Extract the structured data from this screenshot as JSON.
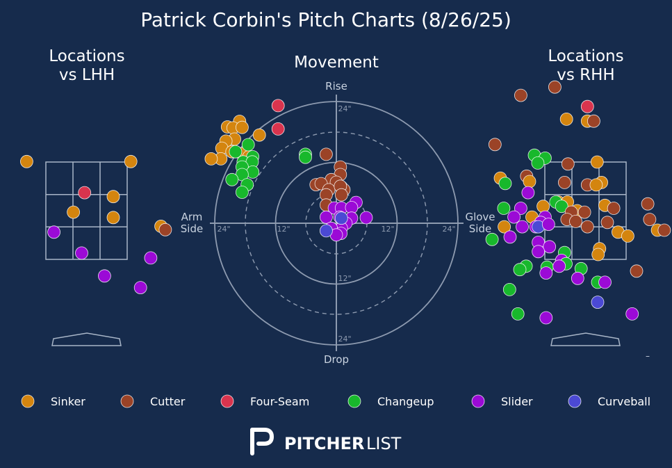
{
  "title": "Patrick Corbin's Pitch Charts (8/26/25)",
  "panels": {
    "lhh_title": [
      "Locations",
      "vs LHH"
    ],
    "movement_title": "Movement",
    "rhh_title": [
      "Locations",
      "vs RHH"
    ]
  },
  "movement_axes": {
    "top": "Rise",
    "bottom": "Drop",
    "left": [
      "Arm",
      "Side"
    ],
    "right": [
      "Glove",
      "Side"
    ],
    "ring_labels": [
      "24\"",
      "12\"",
      "12\"",
      "24\"",
      "12\"",
      "24\""
    ]
  },
  "legend": [
    {
      "name": "Sinker",
      "color": "#d4850f"
    },
    {
      "name": "Cutter",
      "color": "#9b4327"
    },
    {
      "name": "Four-Seam",
      "color": "#d9344e"
    },
    {
      "name": "Changeup",
      "color": "#18b82c"
    },
    {
      "name": "Slider",
      "color": "#9b0ad6"
    },
    {
      "name": "Curveball",
      "color": "#4b49d4"
    }
  ],
  "brand": {
    "bold": "PITCHER",
    "light": "LIST"
  },
  "stray_mark": "–",
  "chart_data": [
    {
      "type": "scatter",
      "title": "Locations vs LHH",
      "x_units": "plate_x_ft",
      "y_units": "plate_z_ft",
      "points": [
        {
          "pitch": "Sinker",
          "x": -1.23,
          "y": 3.51
        },
        {
          "pitch": "Sinker",
          "x": 0.91,
          "y": 3.51
        },
        {
          "pitch": "Four-Seam",
          "x": -0.04,
          "y": 2.87
        },
        {
          "pitch": "Sinker",
          "x": 0.55,
          "y": 2.79
        },
        {
          "pitch": "Sinker",
          "x": -0.27,
          "y": 2.47
        },
        {
          "pitch": "Sinker",
          "x": 0.55,
          "y": 2.36
        },
        {
          "pitch": "Sinker",
          "x": 1.53,
          "y": 2.18
        },
        {
          "pitch": "Cutter",
          "x": 1.62,
          "y": 2.11
        },
        {
          "pitch": "Slider",
          "x": -0.67,
          "y": 2.06
        },
        {
          "pitch": "Slider",
          "x": -0.1,
          "y": 1.63
        },
        {
          "pitch": "Slider",
          "x": 1.32,
          "y": 1.53
        },
        {
          "pitch": "Slider",
          "x": 0.37,
          "y": 1.16
        },
        {
          "pitch": "Slider",
          "x": 1.11,
          "y": 0.92
        }
      ]
    },
    {
      "type": "scatter",
      "title": "Movement",
      "x_units": "horizontal_break_in",
      "y_units": "induced_vertical_break_in",
      "points": [
        {
          "pitch": "Four-Seam",
          "x": -11.5,
          "y": 23.2
        },
        {
          "pitch": "Four-Seam",
          "x": -11.5,
          "y": 18.6
        },
        {
          "pitch": "Sinker",
          "x": -19.1,
          "y": 20.1
        },
        {
          "pitch": "Sinker",
          "x": -21.5,
          "y": 19.0
        },
        {
          "pitch": "Sinker",
          "x": -20.4,
          "y": 18.8
        },
        {
          "pitch": "Sinker",
          "x": -18.6,
          "y": 18.9
        },
        {
          "pitch": "Sinker",
          "x": -15.2,
          "y": 17.4
        },
        {
          "pitch": "Sinker",
          "x": -20.1,
          "y": 16.6
        },
        {
          "pitch": "Sinker",
          "x": -21.8,
          "y": 16.2
        },
        {
          "pitch": "Sinker",
          "x": -22.6,
          "y": 14.8
        },
        {
          "pitch": "Sinker",
          "x": -20.6,
          "y": 14.1
        },
        {
          "pitch": "Sinker",
          "x": -18.6,
          "y": 13.7
        },
        {
          "pitch": "Sinker",
          "x": -22.8,
          "y": 12.7
        },
        {
          "pitch": "Sinker",
          "x": -24.7,
          "y": 12.7
        },
        {
          "pitch": "Sinker",
          "x": -17.3,
          "y": 13.1
        },
        {
          "pitch": "Changeup",
          "x": -17.4,
          "y": 15.5
        },
        {
          "pitch": "Changeup",
          "x": -19.9,
          "y": 14.1
        },
        {
          "pitch": "Changeup",
          "x": -16.5,
          "y": 13.1
        },
        {
          "pitch": "Changeup",
          "x": -18.4,
          "y": 12.1
        },
        {
          "pitch": "Changeup",
          "x": -16.6,
          "y": 12.1
        },
        {
          "pitch": "Changeup",
          "x": -18.6,
          "y": 11.1
        },
        {
          "pitch": "Changeup",
          "x": -16.5,
          "y": 10.1
        },
        {
          "pitch": "Changeup",
          "x": -18.6,
          "y": 9.6
        },
        {
          "pitch": "Changeup",
          "x": -20.6,
          "y": 8.6
        },
        {
          "pitch": "Changeup",
          "x": -17.6,
          "y": 7.6
        },
        {
          "pitch": "Changeup",
          "x": -18.6,
          "y": 6.1
        },
        {
          "pitch": "Changeup",
          "x": -6.1,
          "y": 13.6
        },
        {
          "pitch": "Changeup",
          "x": -6.1,
          "y": 13.0
        },
        {
          "pitch": "Cutter",
          "x": -2.0,
          "y": 13.6
        },
        {
          "pitch": "Cutter",
          "x": 0.8,
          "y": 11.1
        },
        {
          "pitch": "Cutter",
          "x": 0.8,
          "y": 9.6
        },
        {
          "pitch": "Cutter",
          "x": -1.0,
          "y": 8.6
        },
        {
          "pitch": "Cutter",
          "x": 0.0,
          "y": 8.1
        },
        {
          "pitch": "Cutter",
          "x": -4.0,
          "y": 7.6
        },
        {
          "pitch": "Cutter",
          "x": -3.0,
          "y": 7.8
        },
        {
          "pitch": "Cutter",
          "x": -1.5,
          "y": 6.6
        },
        {
          "pitch": "Cutter",
          "x": 1.0,
          "y": 7.1
        },
        {
          "pitch": "Cutter",
          "x": 1.5,
          "y": 6.6
        },
        {
          "pitch": "Cutter",
          "x": 0.8,
          "y": 7.3
        },
        {
          "pitch": "Cutter",
          "x": -2.0,
          "y": 5.6
        },
        {
          "pitch": "Cutter",
          "x": -2.0,
          "y": 3.6
        },
        {
          "pitch": "Cutter",
          "x": 1.0,
          "y": 5.6
        },
        {
          "pitch": "Slider",
          "x": 3.9,
          "y": 4.1
        },
        {
          "pitch": "Slider",
          "x": -0.4,
          "y": 3.0
        },
        {
          "pitch": "Slider",
          "x": 1.0,
          "y": 3.0
        },
        {
          "pitch": "Slider",
          "x": 3.0,
          "y": 3.1
        },
        {
          "pitch": "Slider",
          "x": -2.0,
          "y": 1.2
        },
        {
          "pitch": "Slider",
          "x": 0.7,
          "y": 1.2
        },
        {
          "pitch": "Slider",
          "x": 3.0,
          "y": 1.0
        },
        {
          "pitch": "Slider",
          "x": 5.9,
          "y": 1.1
        },
        {
          "pitch": "Slider",
          "x": 1.9,
          "y": 0.0
        },
        {
          "pitch": "Slider",
          "x": 1.0,
          "y": -1.0
        },
        {
          "pitch": "Slider",
          "x": -1.0,
          "y": -1.0
        },
        {
          "pitch": "Slider",
          "x": 0.9,
          "y": -2.0
        },
        {
          "pitch": "Slider",
          "x": 0.0,
          "y": -2.3
        },
        {
          "pitch": "Curveball",
          "x": -2.0,
          "y": -1.5
        },
        {
          "pitch": "Curveball",
          "x": 1.0,
          "y": 1.0
        }
      ]
    },
    {
      "type": "scatter",
      "title": "Locations vs RHH",
      "x_units": "plate_x_ft",
      "y_units": "plate_z_ft",
      "points": [
        {
          "pitch": "Cutter",
          "x": -1.33,
          "y": 4.87
        },
        {
          "pitch": "Cutter",
          "x": -0.63,
          "y": 5.04
        },
        {
          "pitch": "Four-Seam",
          "x": 0.04,
          "y": 4.64
        },
        {
          "pitch": "Sinker",
          "x": -0.39,
          "y": 4.38
        },
        {
          "pitch": "Sinker",
          "x": 0.04,
          "y": 4.34
        },
        {
          "pitch": "Cutter",
          "x": 0.17,
          "y": 4.34
        },
        {
          "pitch": "Cutter",
          "x": -1.86,
          "y": 3.86
        },
        {
          "pitch": "Changeup",
          "x": -1.05,
          "y": 3.64
        },
        {
          "pitch": "Changeup",
          "x": -0.83,
          "y": 3.58
        },
        {
          "pitch": "Changeup",
          "x": -0.98,
          "y": 3.48
        },
        {
          "pitch": "Cutter",
          "x": -0.36,
          "y": 3.46
        },
        {
          "pitch": "Sinker",
          "x": 0.24,
          "y": 3.5
        },
        {
          "pitch": "Sinker",
          "x": -1.75,
          "y": 3.17
        },
        {
          "pitch": "Changeup",
          "x": -1.65,
          "y": 3.06
        },
        {
          "pitch": "Cutter",
          "x": -1.21,
          "y": 3.21
        },
        {
          "pitch": "Sinker",
          "x": -1.15,
          "y": 3.1
        },
        {
          "pitch": "Cutter",
          "x": -0.43,
          "y": 3.08
        },
        {
          "pitch": "Cutter",
          "x": 0.04,
          "y": 3.03
        },
        {
          "pitch": "Sinker",
          "x": 0.33,
          "y": 3.08
        },
        {
          "pitch": "Sinker",
          "x": 0.22,
          "y": 3.03
        },
        {
          "pitch": "Slider",
          "x": -1.18,
          "y": 2.87
        },
        {
          "pitch": "Sinker",
          "x": -0.87,
          "y": 2.59
        },
        {
          "pitch": "Sinker",
          "x": -0.56,
          "y": 2.68
        },
        {
          "pitch": "Changeup",
          "x": -0.61,
          "y": 2.68
        },
        {
          "pitch": "Sinker",
          "x": -0.37,
          "y": 2.68
        },
        {
          "pitch": "Changeup",
          "x": -0.49,
          "y": 2.59
        },
        {
          "pitch": "Sinker",
          "x": -0.17,
          "y": 2.5
        },
        {
          "pitch": "Cutter",
          "x": -0.29,
          "y": 2.47
        },
        {
          "pitch": "Cutter",
          "x": -0.02,
          "y": 2.47
        },
        {
          "pitch": "Sinker",
          "x": 0.4,
          "y": 2.61
        },
        {
          "pitch": "Cutter",
          "x": 0.58,
          "y": 2.55
        },
        {
          "pitch": "Slider",
          "x": -1.33,
          "y": 2.55
        },
        {
          "pitch": "Slider",
          "x": -1.47,
          "y": 2.37
        },
        {
          "pitch": "Changeup",
          "x": -1.68,
          "y": 2.55
        },
        {
          "pitch": "Sinker",
          "x": -1.1,
          "y": 2.37
        },
        {
          "pitch": "Slider",
          "x": -0.83,
          "y": 2.37
        },
        {
          "pitch": "Slider",
          "x": -0.92,
          "y": 2.26
        },
        {
          "pitch": "Cutter",
          "x": -0.38,
          "y": 2.32
        },
        {
          "pitch": "Cutter",
          "x": -0.2,
          "y": 2.28
        },
        {
          "pitch": "Cutter",
          "x": 0.04,
          "y": 2.17
        },
        {
          "pitch": "Cutter",
          "x": 0.45,
          "y": 2.26
        },
        {
          "pitch": "Cutter",
          "x": 1.28,
          "y": 2.64
        },
        {
          "pitch": "Cutter",
          "x": 1.32,
          "y": 2.32
        },
        {
          "pitch": "Sinker",
          "x": -1.67,
          "y": 2.17
        },
        {
          "pitch": "Slider",
          "x": -1.3,
          "y": 2.17
        },
        {
          "pitch": "Slider",
          "x": -1.02,
          "y": 2.17
        },
        {
          "pitch": "Curveball",
          "x": -0.97,
          "y": 2.17
        },
        {
          "pitch": "Slider",
          "x": -0.76,
          "y": 2.22
        },
        {
          "pitch": "Sinker",
          "x": 0.67,
          "y": 2.06
        },
        {
          "pitch": "Sinker",
          "x": 0.87,
          "y": 1.98
        },
        {
          "pitch": "Sinker",
          "x": 1.48,
          "y": 2.1
        },
        {
          "pitch": "Cutter",
          "x": 1.62,
          "y": 2.1
        },
        {
          "pitch": "Changeup",
          "x": -1.92,
          "y": 1.91
        },
        {
          "pitch": "Slider",
          "x": -1.55,
          "y": 1.96
        },
        {
          "pitch": "Slider",
          "x": -0.97,
          "y": 1.85
        },
        {
          "pitch": "Slider",
          "x": -0.74,
          "y": 1.76
        },
        {
          "pitch": "Slider",
          "x": -0.97,
          "y": 1.66
        },
        {
          "pitch": "Changeup",
          "x": -0.43,
          "y": 1.64
        },
        {
          "pitch": "Slider",
          "x": -0.49,
          "y": 1.48
        },
        {
          "pitch": "Changeup",
          "x": -0.4,
          "y": 1.41
        },
        {
          "pitch": "Sinker",
          "x": 0.29,
          "y": 1.72
        },
        {
          "pitch": "Sinker",
          "x": 0.26,
          "y": 1.6
        },
        {
          "pitch": "Changeup",
          "x": -1.22,
          "y": 1.36
        },
        {
          "pitch": "Changeup",
          "x": -0.79,
          "y": 1.34
        },
        {
          "pitch": "Slider",
          "x": -0.54,
          "y": 1.36
        },
        {
          "pitch": "Changeup",
          "x": -0.09,
          "y": 1.31
        },
        {
          "pitch": "Changeup",
          "x": -1.35,
          "y": 1.29
        },
        {
          "pitch": "Slider",
          "x": -0.81,
          "y": 1.22
        },
        {
          "pitch": "Cutter",
          "x": 1.05,
          "y": 1.26
        },
        {
          "pitch": "Slider",
          "x": -0.16,
          "y": 1.11
        },
        {
          "pitch": "Changeup",
          "x": 0.25,
          "y": 1.03
        },
        {
          "pitch": "Slider",
          "x": 0.4,
          "y": 1.03
        },
        {
          "pitch": "Slider",
          "x": 2.0,
          "y": 0.99
        },
        {
          "pitch": "Changeup",
          "x": -1.56,
          "y": 0.88
        },
        {
          "pitch": "Curveball",
          "x": 0.25,
          "y": 0.62
        },
        {
          "pitch": "Changeup",
          "x": -1.39,
          "y": 0.38
        },
        {
          "pitch": "Slider",
          "x": -0.81,
          "y": 0.3
        },
        {
          "pitch": "Slider",
          "x": 0.96,
          "y": 0.38
        }
      ]
    }
  ]
}
